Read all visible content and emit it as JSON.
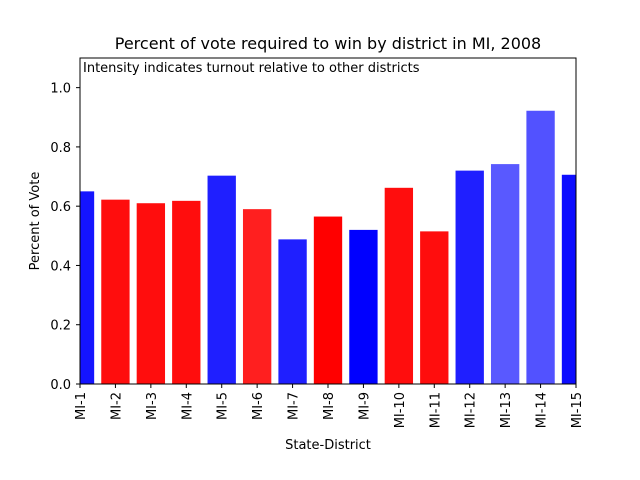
{
  "chart_data": {
    "type": "bar",
    "title": "Percent of vote required to win by district in MI, 2008",
    "xlabel": "State-District",
    "ylabel": "Percent of Vote",
    "annotation": "Intensity indicates turnout relative to other districts",
    "ylim": [
      0,
      1.1
    ],
    "yticks": [
      0.0,
      0.2,
      0.4,
      0.6,
      0.8,
      1.0
    ],
    "ytick_labels": [
      "0.0",
      "0.2",
      "0.4",
      "0.6",
      "0.8",
      "1.0"
    ],
    "categories": [
      "MI-1",
      "MI-2",
      "MI-3",
      "MI-4",
      "MI-5",
      "MI-6",
      "MI-7",
      "MI-8",
      "MI-9",
      "MI-10",
      "MI-11",
      "MI-12",
      "MI-13",
      "MI-14",
      "MI-15"
    ],
    "values": [
      0.65,
      0.622,
      0.61,
      0.618,
      0.703,
      0.59,
      0.488,
      0.565,
      0.52,
      0.662,
      0.515,
      0.72,
      0.742,
      0.922,
      0.706
    ],
    "colors": [
      "#0000ff",
      "#ff0000",
      "#ff0000",
      "#ff0000",
      "#0000ff",
      "#ff0000",
      "#0000ff",
      "#ff0000",
      "#0000ff",
      "#ff0000",
      "#ff0000",
      "#0000ff",
      "#0000ff",
      "#0000ff",
      "#0000ff"
    ],
    "opacity": [
      0.92,
      0.95,
      0.95,
      0.95,
      0.88,
      0.88,
      0.88,
      1.0,
      1.0,
      0.95,
      0.95,
      0.88,
      0.65,
      0.68,
      0.95
    ]
  }
}
